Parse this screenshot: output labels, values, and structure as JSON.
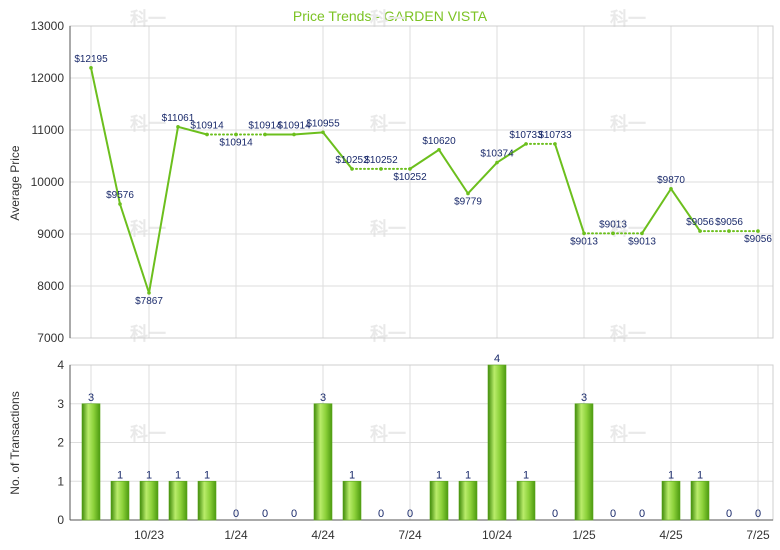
{
  "chart_data": [
    {
      "type": "line",
      "title": "Price Trends - GARDEN VISTA",
      "ylabel": "Average Price",
      "ylim": [
        7000,
        13000
      ],
      "yticks": [
        "7000",
        "8000",
        "9000",
        "10000",
        "11000",
        "12000",
        "13000"
      ],
      "grid": true,
      "series": [
        {
          "values": [
            12195,
            9576,
            7867,
            11061,
            10914,
            10914,
            10914,
            10914,
            10955,
            10252,
            10252,
            10252,
            10620,
            9779,
            10374,
            10733,
            10733,
            9013,
            9013,
            9013,
            9870,
            9056,
            9056,
            9056
          ],
          "labels": [
            "$12195",
            "$9576",
            "$7867",
            "$11061",
            "$10914",
            "$10914",
            "$10914",
            "$10914",
            "$10955",
            "$10252",
            "$10252",
            "$10252",
            "$10620",
            "$9779",
            "$10374",
            "$10733",
            "$10733",
            "$9013",
            "$9013",
            "$9013",
            "$9870",
            "$9056",
            "$9056",
            "$9056"
          ],
          "carried_forward": [
            false,
            false,
            false,
            false,
            false,
            true,
            true,
            false,
            false,
            false,
            true,
            true,
            false,
            false,
            false,
            false,
            true,
            false,
            true,
            true,
            false,
            false,
            true,
            true
          ]
        }
      ]
    },
    {
      "type": "bar",
      "ylabel": "No. of Transactions",
      "ylim": [
        0,
        4
      ],
      "yticks": [
        "0",
        "1",
        "2",
        "3",
        "4"
      ],
      "x_tick_labels": [
        "10/23",
        "1/24",
        "4/24",
        "7/24",
        "10/24",
        "1/25",
        "4/25",
        "7/25"
      ],
      "values": [
        3,
        1,
        1,
        1,
        1,
        0,
        0,
        0,
        3,
        1,
        0,
        0,
        1,
        1,
        4,
        1,
        0,
        3,
        0,
        0,
        1,
        1,
        0,
        0
      ],
      "labels": [
        "3",
        "1",
        "1",
        "1",
        "1",
        "0",
        "0",
        "0",
        "3",
        "1",
        "0",
        "0",
        "1",
        "1",
        "4",
        "1",
        "0",
        "3",
        "0",
        "0",
        "1",
        "1",
        "0",
        "0"
      ]
    }
  ],
  "watermark_text": "科一",
  "colors": {
    "line": "#6cbf1d",
    "title": "#7cc324",
    "bar_light": "#b6e86a",
    "bar_dark": "#4c9a10",
    "label": "#1a2a6b",
    "grid": "#dddddd",
    "axis": "#333333"
  }
}
